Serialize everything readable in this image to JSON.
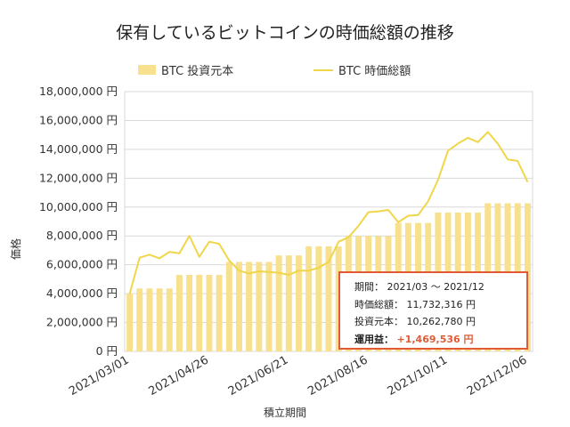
{
  "chart_data": {
    "type": "bar",
    "title": "保有しているビットコインの時価総額の推移",
    "xlabel": "積立期間",
    "ylabel": "価格",
    "ylim": [
      0,
      18000000
    ],
    "yticks": [
      0,
      2000000,
      4000000,
      6000000,
      8000000,
      10000000,
      12000000,
      14000000,
      16000000,
      18000000
    ],
    "ytick_labels": [
      "0 円",
      "2,000,000 円",
      "4,000,000 円",
      "6,000,000 円",
      "8,000,000 円",
      "10,000,000 円",
      "12,000,000 円",
      "14,000,000 円",
      "16,000,000 円",
      "18,000,000 円"
    ],
    "xtick_labels": [
      "2021/03/01",
      "2021/04/26",
      "2021/06/21",
      "2021/08/16",
      "2021/10/11",
      "2021/12/06"
    ],
    "xtick_index": [
      0,
      8,
      16,
      24,
      32,
      40
    ],
    "grid": true,
    "legend_placement": "top",
    "series": [
      {
        "name": "BTC 投資元本",
        "type": "bar",
        "color": "#f7e08e",
        "values": [
          4000000,
          4360000,
          4360000,
          4360000,
          4360000,
          5300000,
          5300000,
          5300000,
          5300000,
          5300000,
          6200000,
          6200000,
          6200000,
          6200000,
          6200000,
          6650000,
          6650000,
          6650000,
          7280000,
          7280000,
          7280000,
          7280000,
          8000000,
          8000000,
          8000000,
          8000000,
          8000000,
          8900000,
          8900000,
          8900000,
          8900000,
          9620000,
          9620000,
          9620000,
          9620000,
          9620000,
          10262780,
          10262780,
          10262780,
          10262780,
          10262780
        ]
      },
      {
        "name": "BTC 時価総額",
        "type": "line",
        "color": "#f0d64a",
        "values": [
          4000000,
          6500000,
          6700000,
          6450000,
          6900000,
          6800000,
          8000000,
          6550000,
          7600000,
          7450000,
          6300000,
          5600000,
          5400000,
          5550000,
          5500000,
          5450000,
          5300000,
          5600000,
          5600000,
          5800000,
          6200000,
          7600000,
          7900000,
          8700000,
          9650000,
          9700000,
          9800000,
          8950000,
          9400000,
          9450000,
          10400000,
          11900000,
          13900000,
          14400000,
          14800000,
          14500000,
          15200000,
          14400000,
          13300000,
          13200000,
          11732316
        ]
      }
    ]
  },
  "summary": {
    "period_label": "期間：",
    "period_value": "2021/03 ～ 2021/12",
    "market_label": "時価総額：",
    "market_value": "11,732,316 円",
    "principal_label": "投資元本：",
    "principal_value": "10,262,780 円",
    "profit_label": "運用益：",
    "profit_value": "+1,469,536 円",
    "border_color": "#e05a34"
  }
}
